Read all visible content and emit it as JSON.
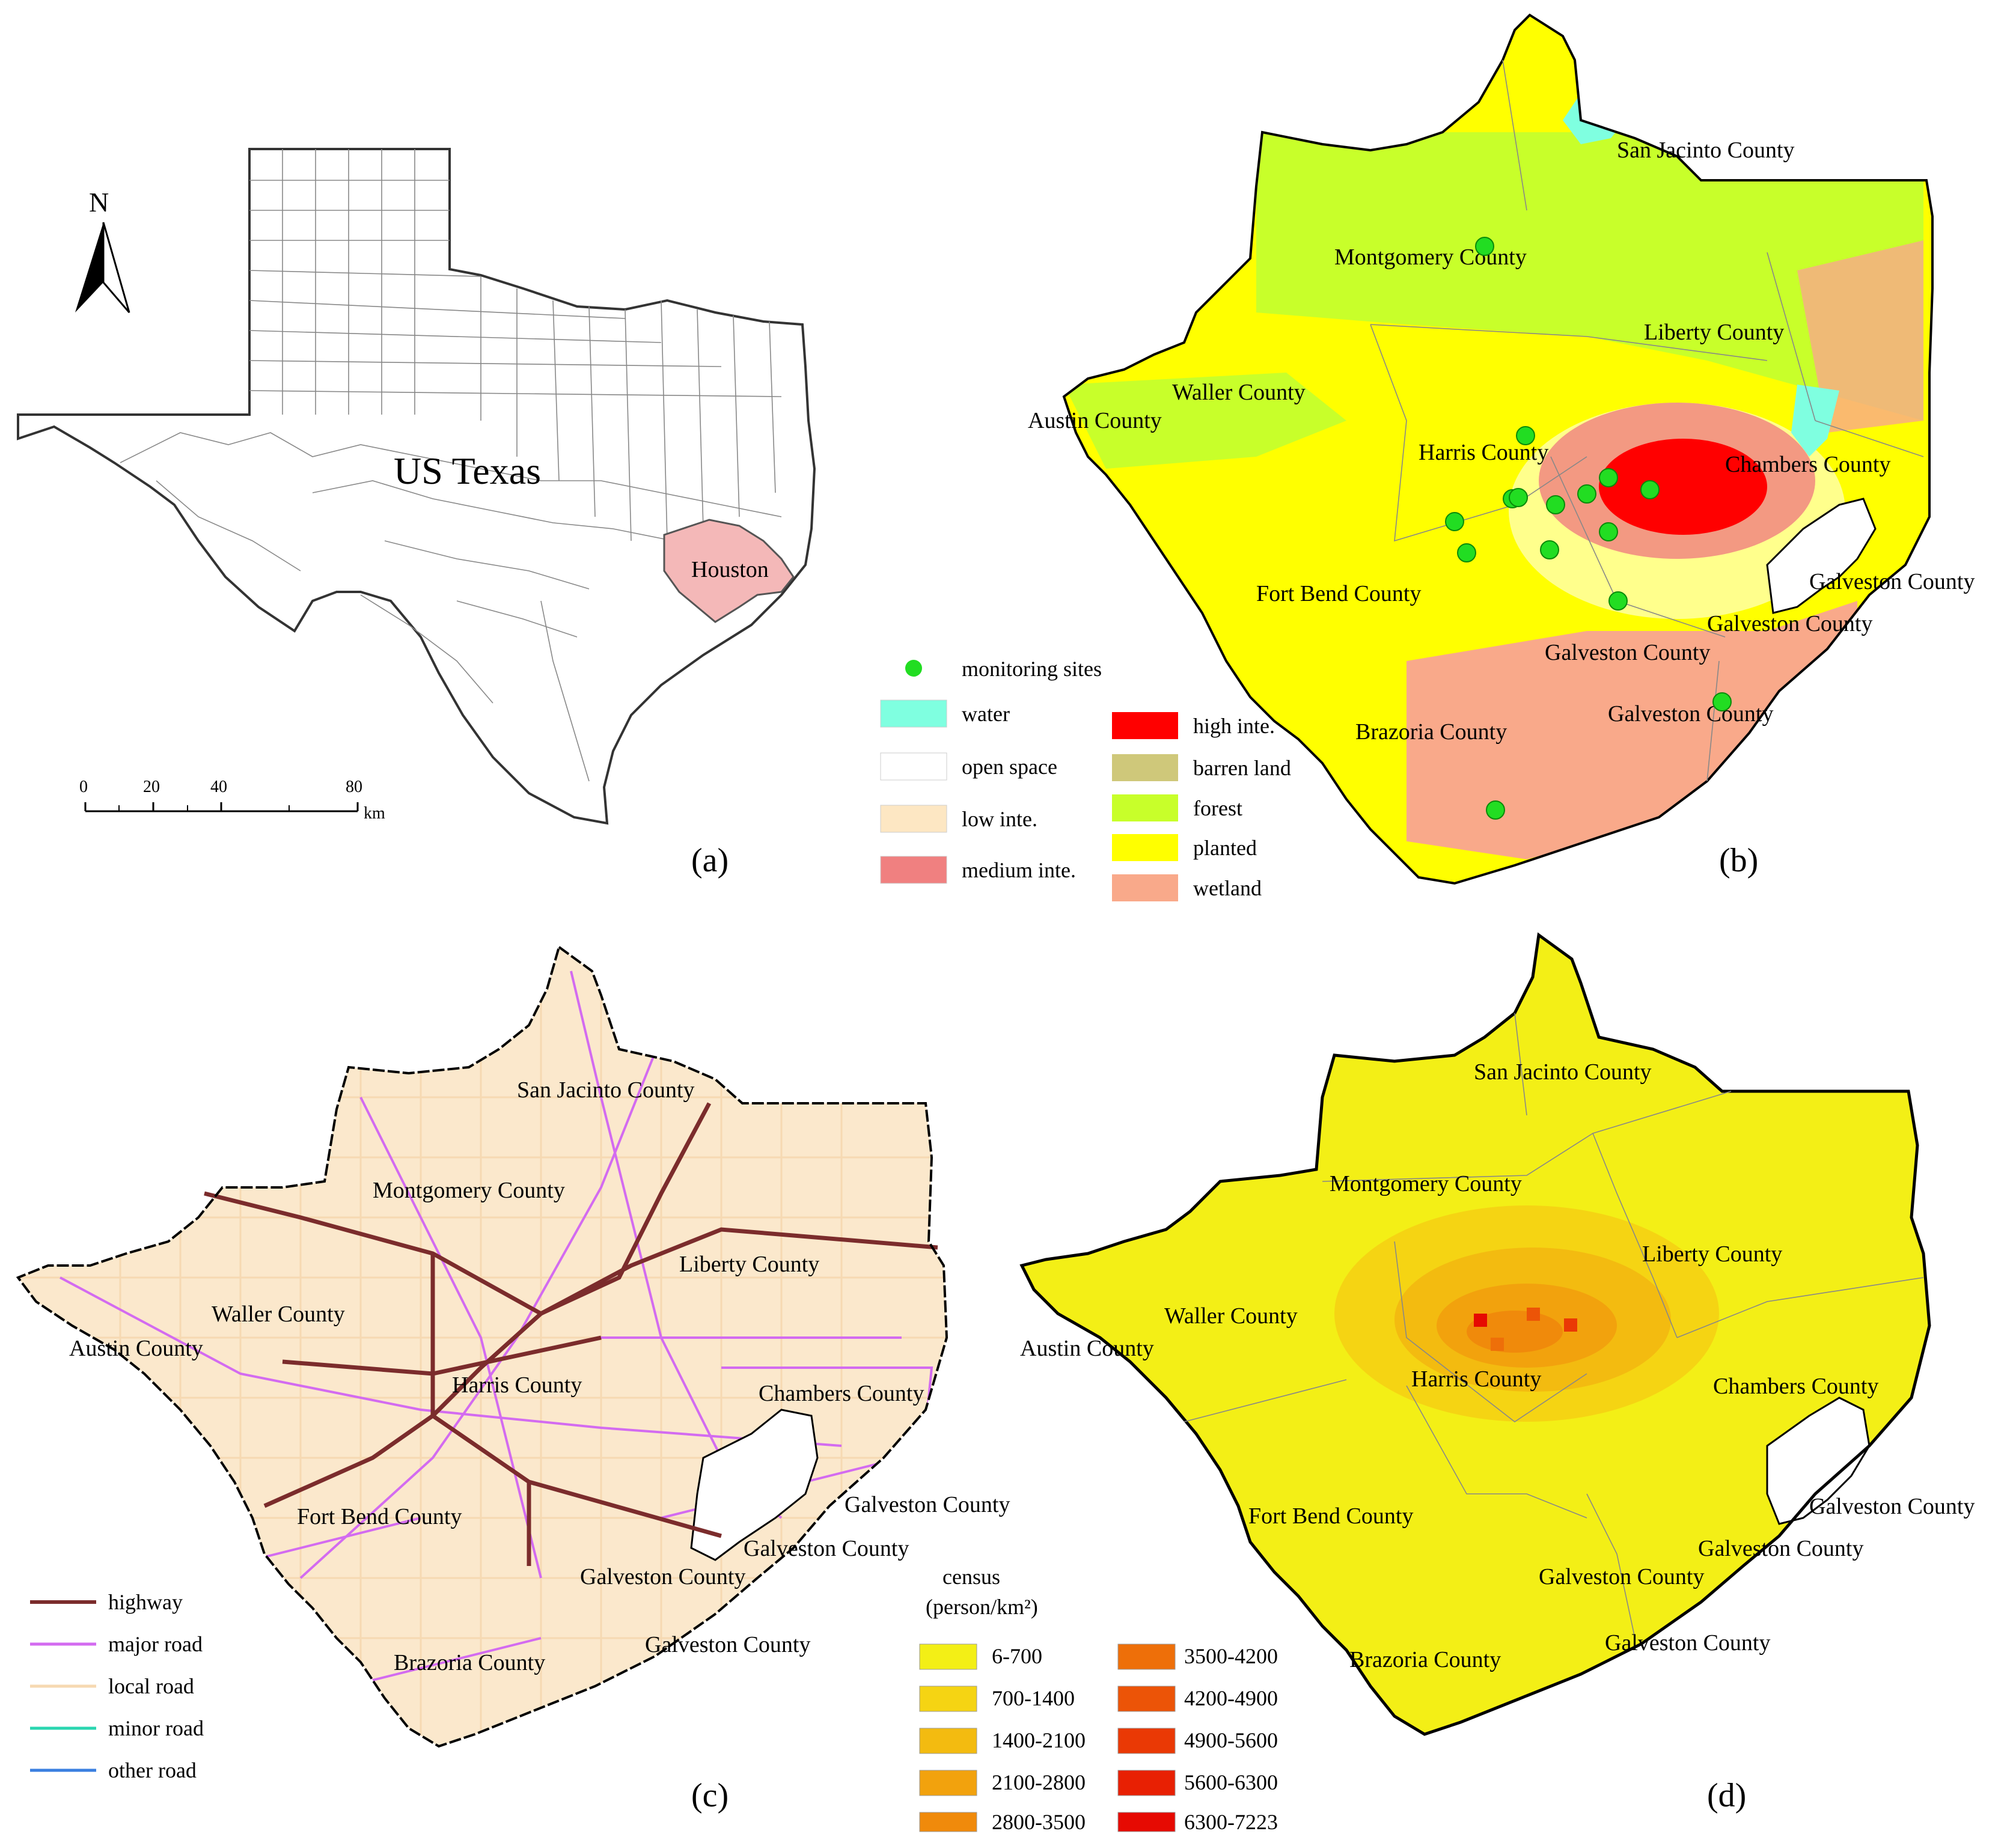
{
  "panels": {
    "a": {
      "caption": "(a)",
      "title": "US Texas",
      "city_label": "Houston",
      "north_label": "N",
      "scale": {
        "ticks": [
          "0",
          "20",
          "40",
          "80"
        ],
        "unit": "km"
      },
      "colors": {
        "houston_fill": "#f4b8b8",
        "outline": "#555555"
      }
    },
    "b": {
      "caption": "(b)",
      "counties": [
        "San Jacinto County",
        "Montgomery County",
        "Liberty County",
        "Waller County",
        "Austin County",
        "Harris County",
        "Chambers County",
        "Fort Bend County",
        "Galveston County",
        "Galveston County",
        "Galveston County",
        "Galveston County",
        "Brazoria County"
      ],
      "legend_sites": "monitoring sites",
      "legend": [
        {
          "label": "water",
          "color": "#7fffe0"
        },
        {
          "label": "open space",
          "color": "#ffffff"
        },
        {
          "label": "low inte.",
          "color": "#fde7c3"
        },
        {
          "label": "medium inte.",
          "color": "#f08080"
        },
        {
          "label": "high inte.",
          "color": "#ff0000"
        },
        {
          "label": "barren land",
          "color": "#cfc87a"
        },
        {
          "label": "forest",
          "color": "#c8ff2a"
        },
        {
          "label": "planted",
          "color": "#ffff00"
        },
        {
          "label": "wetland",
          "color": "#f9a98a"
        }
      ],
      "site_color": "#22dd22"
    },
    "c": {
      "caption": "(c)",
      "counties": [
        "San Jacinto County",
        "Montgomery County",
        "Liberty County",
        "Waller County",
        "Austin County",
        "Harris County",
        "Chambers County",
        "Fort Bend County",
        "Galveston County",
        "Galveston County",
        "Galveston County",
        "Galveston County",
        "Brazoria County"
      ],
      "legend": [
        {
          "label": "highway",
          "color": "#7b2c2c"
        },
        {
          "label": "major road",
          "color": "#d36bf0"
        },
        {
          "label": "local road",
          "color": "#f6d9b2"
        },
        {
          "label": "minor road",
          "color": "#2ad6b0"
        },
        {
          "label": "other road",
          "color": "#3a7fe0"
        }
      ]
    },
    "d": {
      "caption": "(d)",
      "counties": [
        "San Jacinto County",
        "Montgomery County",
        "Liberty County",
        "Waller County",
        "Austin County",
        "Harris County",
        "Chambers County",
        "Fort Bend County",
        "Galveston County",
        "Galveston County",
        "Galveston County",
        "Galveston County",
        "Brazoria County"
      ],
      "legend_title": "census",
      "legend_unit": "(person/km²)",
      "legend": [
        {
          "label": "6-700",
          "color": "#f3ef16"
        },
        {
          "label": "700-1400",
          "color": "#f5d413"
        },
        {
          "label": "1400-2100",
          "color": "#f3bb10"
        },
        {
          "label": "2100-2800",
          "color": "#f2a20d"
        },
        {
          "label": "2800-3500",
          "color": "#f08a0b"
        },
        {
          "label": "3500-4200",
          "color": "#ee6f09"
        },
        {
          "label": "4200-4900",
          "color": "#ec5407"
        },
        {
          "label": "4900-5600",
          "color": "#ea3905"
        },
        {
          "label": "5600-6300",
          "color": "#e82003"
        },
        {
          "label": "6300-7223",
          "color": "#e60a02"
        }
      ]
    }
  }
}
